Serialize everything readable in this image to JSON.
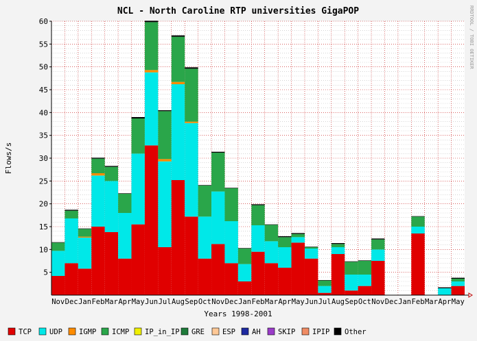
{
  "side_text": "RRDTOOL / TOBI OETIKER",
  "colors": {
    "TCP": "#e00000",
    "UDP": "#00e8e8",
    "IGMP": "#ff8c00",
    "ICMP": "#2aa64a",
    "IP_in_IP": "#f0f000",
    "GRE": "#1e7a3a",
    "ESP": "#ffc896",
    "AH": "#1e2aa0",
    "SKIP": "#9a3cc8",
    "IPIP": "#f08c64",
    "Other": "#000000",
    "grid_minor": "#bbbbbb",
    "grid_major": "#c00000",
    "background": "#f3f3f3",
    "plot_bg": "#ffffff"
  },
  "chart_data": {
    "type": "bar",
    "stacked": true,
    "title": "NCL - North Caroline RTP universities GigaPOP",
    "xlabel": "Years 1998-2001",
    "ylabel": "Flows/s",
    "ylim": [
      0,
      60
    ],
    "yticks": [
      5,
      10,
      15,
      20,
      25,
      30,
      35,
      40,
      45,
      50,
      55,
      60
    ],
    "categories": [
      "Nov",
      "Dec",
      "Jan",
      "Feb",
      "Mar",
      "Apr",
      "May",
      "Jun",
      "Jul",
      "Aug",
      "Sep",
      "Oct",
      "Nov",
      "Dec",
      "Jan",
      "Feb",
      "Mar",
      "Apr",
      "May",
      "Jun",
      "Jul",
      "Aug",
      "Sep",
      "Oct",
      "Nov",
      "Dec",
      "Jan",
      "Feb",
      "Mar",
      "Apr",
      "May"
    ],
    "series": [
      {
        "name": "TCP",
        "values": [
          4.2,
          7.0,
          5.8,
          15.0,
          13.8,
          8.0,
          15.5,
          32.8,
          10.5,
          25.2,
          17.2,
          8.0,
          11.2,
          7.0,
          3.0,
          9.5,
          7.0,
          6.0,
          11.5,
          8.0,
          0.5,
          9.0,
          1.0,
          2.0,
          7.5,
          0,
          0,
          13.5,
          0,
          0,
          2.0
        ]
      },
      {
        "name": "UDP",
        "values": [
          5.5,
          9.8,
          6.8,
          11.2,
          11.2,
          10.0,
          15.5,
          16.0,
          18.8,
          21.0,
          20.5,
          9.2,
          11.5,
          9.2,
          3.8,
          5.8,
          4.8,
          4.5,
          1.2,
          2.2,
          1.5,
          1.5,
          3.5,
          2.5,
          2.5,
          0,
          0,
          1.5,
          0,
          1.5,
          1.0
        ]
      },
      {
        "name": "IGMP",
        "values": [
          0,
          0,
          0.2,
          0.5,
          0,
          0,
          0,
          0.5,
          0.5,
          0.5,
          0.3,
          0,
          0,
          0,
          0,
          0,
          0,
          0,
          0,
          0,
          0,
          0,
          0,
          0,
          0,
          0,
          0,
          0,
          0,
          0,
          0
        ]
      },
      {
        "name": "ICMP",
        "values": [
          1.8,
          1.7,
          1.7,
          3.2,
          3.1,
          4.2,
          7.7,
          10.5,
          10.5,
          9.9,
          11.6,
          6.8,
          8.5,
          7.2,
          3.4,
          4.4,
          3.6,
          2.2,
          0.7,
          0.3,
          1.2,
          0.7,
          2.8,
          3.0,
          2.2,
          0,
          0,
          2.2,
          0,
          0,
          0.6
        ]
      },
      {
        "name": "IP_in_IP",
        "values": [
          0,
          0,
          0,
          0,
          0,
          0,
          0,
          0,
          0,
          0,
          0,
          0,
          0,
          0,
          0,
          0,
          0,
          0,
          0,
          0,
          0,
          0,
          0,
          0,
          0,
          0,
          0,
          0,
          0,
          0,
          0
        ]
      },
      {
        "name": "GRE",
        "values": [
          0,
          0,
          0,
          0,
          0,
          0,
          0,
          0,
          0,
          0,
          0,
          0,
          0,
          0,
          0,
          0,
          0,
          0,
          0,
          0,
          0,
          0,
          0,
          0,
          0,
          0,
          0,
          0,
          0,
          0,
          0
        ]
      },
      {
        "name": "ESP",
        "values": [
          0,
          0,
          0,
          0,
          0,
          0,
          0,
          0,
          0,
          0,
          0,
          0,
          0,
          0,
          0,
          0,
          0,
          0,
          0,
          0,
          0,
          0,
          0,
          0,
          0,
          0,
          0,
          0,
          0,
          0,
          0
        ]
      },
      {
        "name": "AH",
        "values": [
          0,
          0,
          0,
          0,
          0,
          0,
          0,
          0,
          0,
          0,
          0,
          0,
          0,
          0,
          0,
          0,
          0,
          0,
          0,
          0,
          0,
          0,
          0,
          0,
          0,
          0,
          0,
          0,
          0,
          0,
          0
        ]
      },
      {
        "name": "SKIP",
        "values": [
          0,
          0,
          0,
          0,
          0,
          0,
          0,
          0,
          0,
          0,
          0,
          0,
          0,
          0,
          0,
          0,
          0,
          0,
          0,
          0,
          0,
          0,
          0,
          0,
          0,
          0,
          0,
          0,
          0,
          0,
          0
        ]
      },
      {
        "name": "IPIP",
        "values": [
          0,
          0,
          0,
          0,
          0,
          0,
          0,
          0,
          0,
          0,
          0,
          0,
          0,
          0,
          0,
          0,
          0,
          0,
          0,
          0,
          0,
          0,
          0,
          0,
          0,
          0,
          0,
          0,
          0,
          0,
          0
        ]
      },
      {
        "name": "Other",
        "values": [
          0.1,
          0.2,
          0.1,
          0.2,
          0.2,
          0.1,
          0.3,
          0.3,
          0.2,
          0.3,
          0.3,
          0.1,
          0.2,
          0.1,
          0.1,
          0.2,
          0.1,
          0.2,
          0.2,
          0.1,
          0.1,
          0.2,
          0.1,
          0.1,
          0.2,
          0,
          0,
          0.1,
          0,
          0.2,
          0.2
        ]
      }
    ],
    "legend": [
      "TCP",
      "UDP",
      "IGMP",
      "ICMP",
      "IP_in_IP",
      "GRE",
      "ESP",
      "AH",
      "SKIP",
      "IPIP",
      "Other"
    ],
    "legend_position": "bottom",
    "grid": true
  }
}
